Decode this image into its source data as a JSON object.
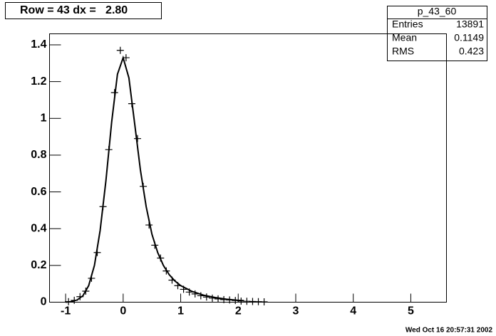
{
  "chart_data": {
    "type": "scatter",
    "title": "Row = 43 dx =   2.80",
    "stats": {
      "name": "p_43_60",
      "rows": [
        {
          "label": "Entries",
          "value": 13891
        },
        {
          "label": "Mean",
          "value": 0.1149
        },
        {
          "label": "RMS",
          "value": 0.423
        }
      ]
    },
    "timestamp": "Wed Oct 16 20:57:31 2002",
    "xlim": [
      -1.28,
      5.62
    ],
    "ylim": [
      0,
      1.46
    ],
    "xticks": [
      -1,
      0,
      1,
      2,
      3,
      4,
      5
    ],
    "yticks": [
      0,
      0.2,
      0.4,
      0.6,
      0.8,
      1,
      1.2,
      1.4
    ],
    "color": "#000000",
    "points": {
      "x": [
        -0.95,
        -0.85,
        -0.75,
        -0.65,
        -0.55,
        -0.45,
        -0.35,
        -0.25,
        -0.15,
        -0.05,
        0.05,
        0.15,
        0.25,
        0.35,
        0.45,
        0.55,
        0.65,
        0.75,
        0.85,
        0.95,
        1.05,
        1.15,
        1.25,
        1.35,
        1.45,
        1.55,
        1.65,
        1.75,
        1.85,
        1.95,
        2.05,
        2.15,
        2.25,
        2.35,
        2.45
      ],
      "values": [
        0.003,
        0.01,
        0.03,
        0.06,
        0.13,
        0.27,
        0.52,
        0.83,
        1.14,
        1.37,
        1.33,
        1.08,
        0.89,
        0.63,
        0.42,
        0.31,
        0.24,
        0.17,
        0.12,
        0.09,
        0.07,
        0.055,
        0.045,
        0.035,
        0.028,
        0.022,
        0.018,
        0.014,
        0.012,
        0.009,
        0.006,
        0.005,
        0.004,
        0.003,
        0.002
      ]
    },
    "fit": {
      "x": [
        -1.0,
        -0.9,
        -0.8,
        -0.7,
        -0.6,
        -0.5,
        -0.4,
        -0.3,
        -0.2,
        -0.1,
        0.0,
        0.1,
        0.2,
        0.3,
        0.4,
        0.5,
        0.6,
        0.7,
        0.8,
        0.9,
        1.0,
        1.2,
        1.4,
        1.6,
        1.8,
        2.0,
        2.1
      ],
      "values": [
        0.0,
        0.003,
        0.012,
        0.035,
        0.09,
        0.2,
        0.39,
        0.66,
        0.98,
        1.24,
        1.33,
        1.22,
        0.97,
        0.72,
        0.52,
        0.37,
        0.27,
        0.2,
        0.15,
        0.115,
        0.09,
        0.058,
        0.038,
        0.025,
        0.016,
        0.01,
        0.008
      ]
    }
  }
}
